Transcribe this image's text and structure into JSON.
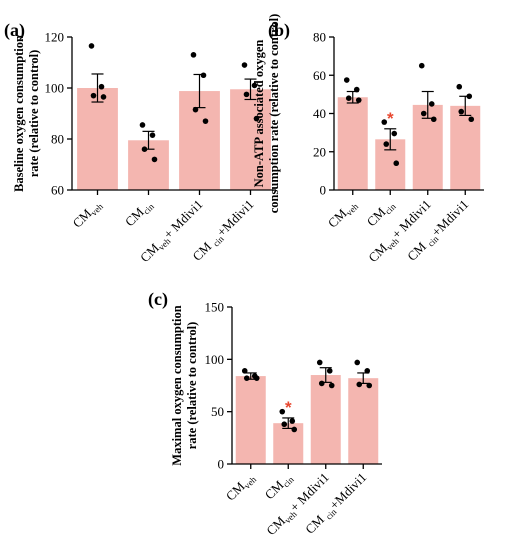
{
  "colors": {
    "bar": "#f4b6b0",
    "significance": "#e8472f"
  },
  "categories": [
    {
      "main": "CM",
      "sub": "veh",
      "suffix": ""
    },
    {
      "main": "CM",
      "sub": "cin",
      "suffix": ""
    },
    {
      "main": "CM",
      "sub": "veh",
      "suffix": "+ Mdivi1"
    },
    {
      "main": "CM ",
      "sub": "cin",
      "suffix": "+Mdivi1"
    }
  ],
  "chart_data": [
    {
      "id": "a",
      "panel_label": "(a)",
      "type": "bar",
      "ylabel_lines": [
        "Baseline oxygen consumption",
        "rate (relative to control)"
      ],
      "ylim": [
        60,
        120
      ],
      "yticks": [
        60,
        80,
        100,
        120
      ],
      "values": [
        100,
        79.5,
        98.8,
        99.5
      ],
      "errors": [
        5.5,
        3.5,
        6.5,
        4
      ],
      "points": [
        [
          116.5,
          100.5,
          97,
          96.5
        ],
        [
          85.5,
          81.5,
          76,
          72
        ],
        [
          113,
          105,
          91.5,
          87
        ],
        [
          109,
          101,
          97.5,
          88
        ]
      ],
      "significant": [
        false,
        false,
        false,
        false
      ]
    },
    {
      "id": "b",
      "panel_label": "(b)",
      "type": "bar",
      "ylabel_lines": [
        "Non-ATP associated oxygen",
        "consumption rate (relative to control)"
      ],
      "ylim": [
        0,
        80
      ],
      "yticks": [
        0,
        20,
        40,
        60,
        80
      ],
      "values": [
        48.5,
        26.5,
        44.5,
        44
      ],
      "errors": [
        3,
        5.5,
        7,
        5
      ],
      "points": [
        [
          57.5,
          52.5,
          48,
          47
        ],
        [
          35.5,
          29.5,
          24,
          14
        ],
        [
          65,
          45,
          40,
          37
        ],
        [
          54,
          49,
          41,
          37
        ]
      ],
      "significant": [
        false,
        true,
        false,
        false
      ]
    },
    {
      "id": "c",
      "panel_label": "(c)",
      "type": "bar",
      "ylabel_lines": [
        "Maximal oxygen consumption",
        "rate (relative to control)"
      ],
      "ylim": [
        0,
        150
      ],
      "yticks": [
        0,
        50,
        100,
        150
      ],
      "values": [
        84,
        39,
        85,
        82
      ],
      "errors": [
        3,
        5,
        7,
        5
      ],
      "points": [
        [
          89,
          84,
          82,
          82
        ],
        [
          50,
          41,
          38,
          33
        ],
        [
          97,
          89,
          77,
          75
        ],
        [
          97,
          89,
          76,
          75
        ]
      ],
      "significant": [
        false,
        true,
        false,
        false
      ]
    }
  ]
}
